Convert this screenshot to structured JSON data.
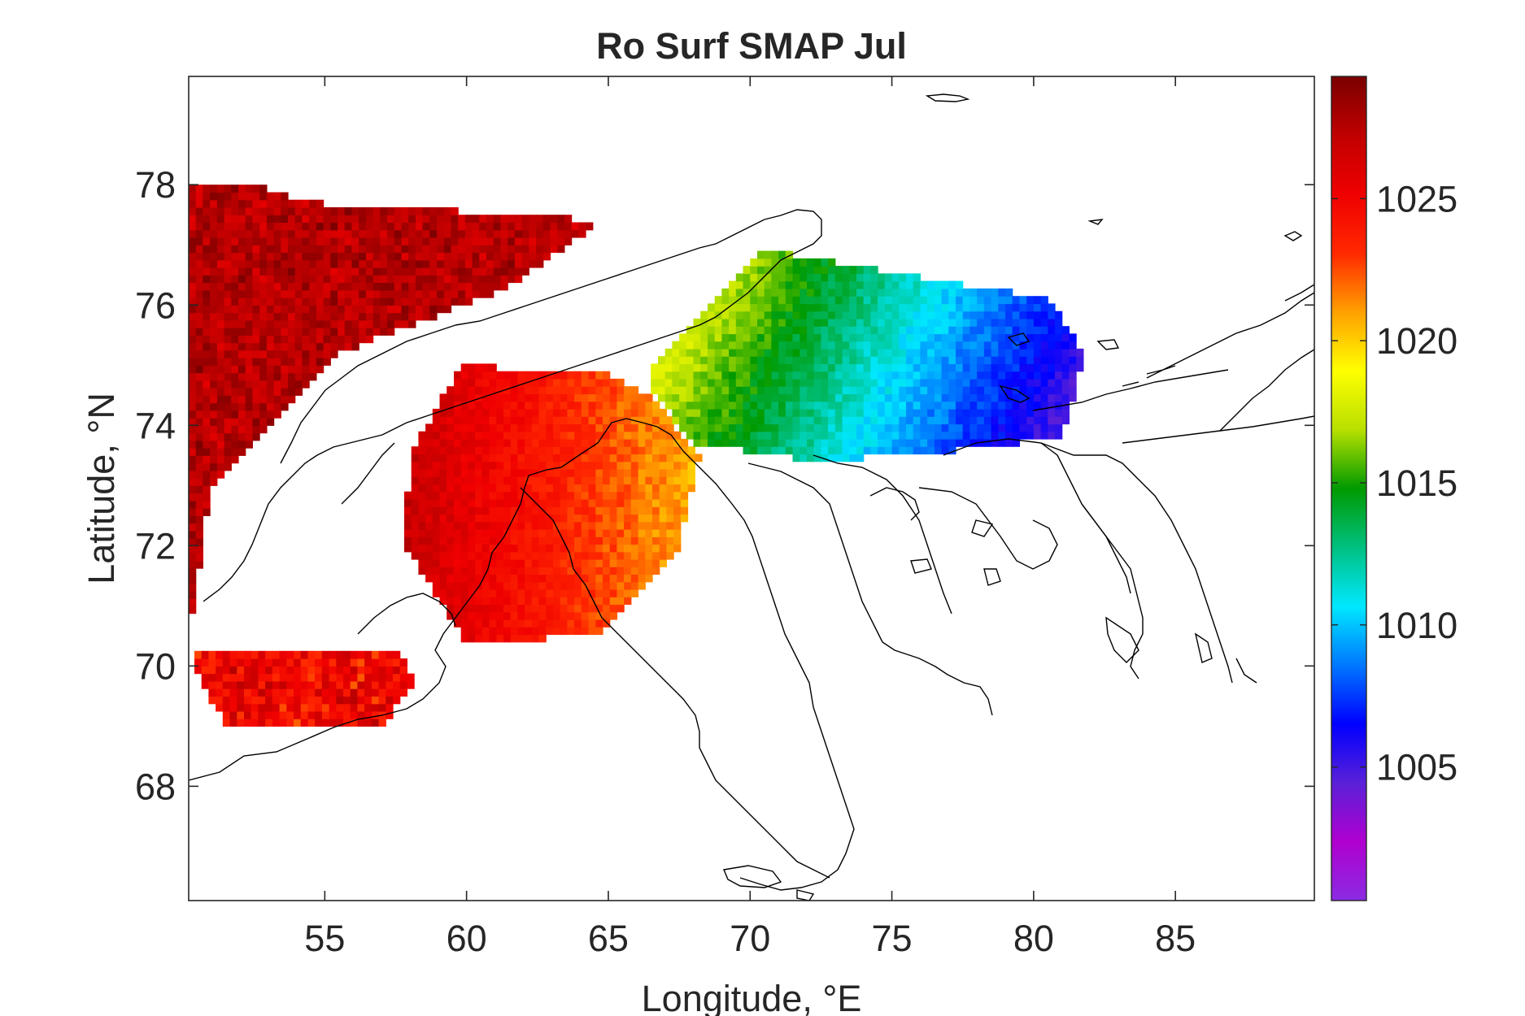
{
  "title": "Ro Surf SMAP Jul",
  "map": {
    "xlabel": "Longitude, °E",
    "ylabel": "Latitude, °N",
    "xlim": [
      50.2,
      89.9
    ],
    "ylim": [
      66.1,
      79.8
    ],
    "xticks": [
      55,
      60,
      65,
      70,
      75,
      80,
      85
    ],
    "yticks": [
      68,
      70,
      72,
      74,
      76,
      78
    ],
    "grid": false,
    "colormap": "jet-like (purple-blue-cyan-green-yellow-red-darkred)",
    "coastline_color": "#000000"
  },
  "colorbar": {
    "location": "right",
    "range": [
      1000.3,
      1029.3
    ],
    "ticks": [
      1005,
      1010,
      1015,
      1020,
      1025
    ],
    "colors": [
      "#8a2be2",
      "#b000d0",
      "#5a20d8",
      "#0000ff",
      "#0078ff",
      "#00e8ff",
      "#00c080",
      "#009a00",
      "#b8e000",
      "#ffff00",
      "#ffa000",
      "#ff2800",
      "#f00000",
      "#c00000",
      "#7a0000"
    ]
  },
  "chart_data": {
    "type": "heatmap",
    "title": "Ro Surf SMAP Jul",
    "xlabel": "Longitude, °E",
    "ylabel": "Latitude, °N",
    "xlim": [
      50.2,
      89.9
    ],
    "ylim": [
      66.1,
      79.8
    ],
    "color_range": [
      1000.3,
      1029.3
    ],
    "regions": [
      {
        "lon": [
          50.2,
          52.5,
          54.5,
          58.5,
          64.8,
          61.5,
          55.5,
          51.0,
          50.2
        ],
        "lat": [
          78.0,
          78.0,
          77.7,
          77.6,
          77.4,
          76.3,
          75.2,
          73.0,
          70.5
        ],
        "value_range": [
          1025.5,
          1028.5
        ]
      },
      {
        "lon": [
          50.4,
          57.5,
          58.2,
          57.0,
          51.5,
          50.4
        ],
        "lat": [
          70.3,
          70.3,
          69.8,
          69.0,
          69.0,
          70.0
        ],
        "value_range": [
          1021.0,
          1027.0
        ]
      },
      {
        "lon": [
          59.8,
          63.0,
          64.8,
          66.5,
          68.2,
          67.5,
          64.5,
          60.0,
          57.8,
          58.0
        ],
        "lat": [
          75.0,
          74.9,
          74.9,
          74.5,
          73.5,
          72.0,
          70.5,
          70.4,
          72.0,
          73.5
        ],
        "value_range": [
          1020.5,
          1027.0
        ]
      },
      {
        "lon": [
          66.5,
          70.5,
          72.0,
          80.5,
          81.8,
          81.0,
          77.5,
          72.5,
          68.0,
          66.5
        ],
        "lat": [
          75.0,
          76.9,
          76.8,
          76.1,
          75.2,
          73.8,
          73.6,
          73.4,
          73.7,
          74.6
        ],
        "value_range": [
          1003.5,
          1020.0
        ]
      }
    ]
  }
}
